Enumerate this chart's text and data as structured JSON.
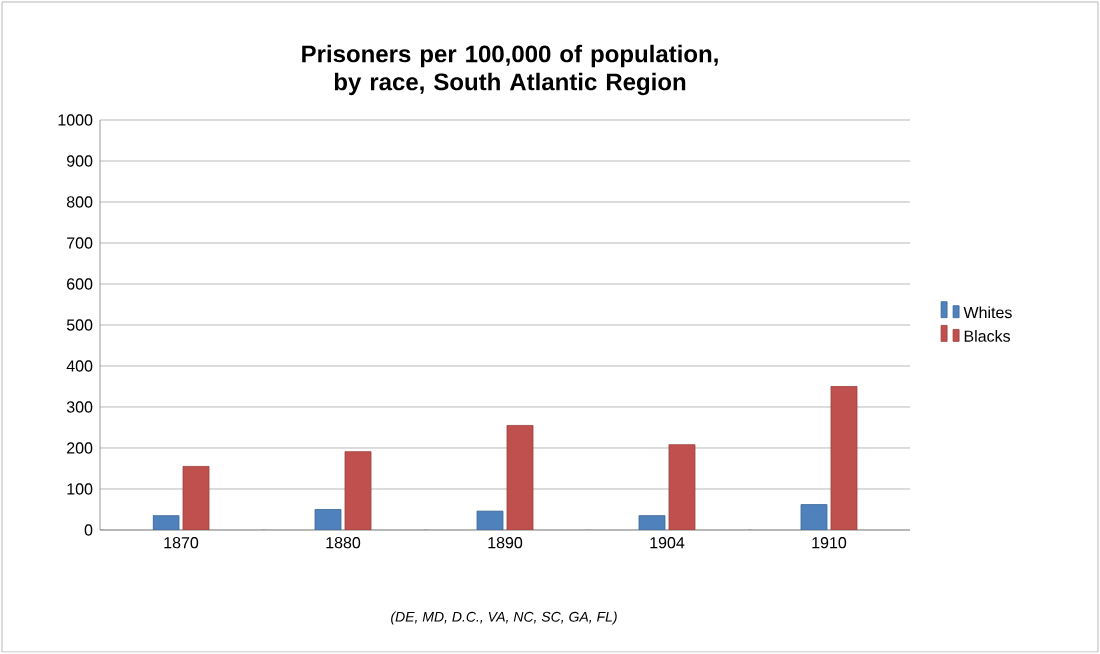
{
  "chart_data": {
    "type": "bar",
    "title": "Prisoners per 100,000 of population, by race, South Atlantic Region",
    "categories": [
      "1870",
      "1880",
      "1890",
      "1904",
      "1910"
    ],
    "series": [
      {
        "name": "Whites",
        "color": "#4f81bd",
        "values": [
          35,
          50,
          46,
          35,
          62
        ]
      },
      {
        "name": "Blacks",
        "color": "#c0504d",
        "values": [
          155,
          191,
          255,
          208,
          350
        ]
      }
    ],
    "ylim": [
      0,
      1000
    ],
    "yticks": [
      0,
      100,
      200,
      300,
      400,
      500,
      600,
      700,
      800,
      900,
      1000
    ],
    "grid": "y",
    "legend": "right",
    "annotations": [
      "(DE, MD, D.C., VA, NC, SC, GA, FL)"
    ]
  }
}
